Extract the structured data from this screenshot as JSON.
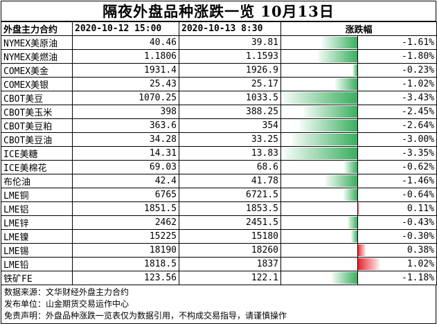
{
  "title": "隔夜外盘品种涨跌一览 10月13日",
  "headers": {
    "name": "外盘主力合约",
    "date1": "2020-10-12 15:00",
    "date2": "2020-10-13 8:30",
    "change": "涨跌幅"
  },
  "rows": [
    {
      "name": "NYMEX美原油",
      "v1": "40.46",
      "v2": "39.81",
      "pct": "-1.61%",
      "chg": -1.61
    },
    {
      "name": "NYMEX美燃油",
      "v1": "1.1806",
      "v2": "1.1593",
      "pct": "-1.80%",
      "chg": -1.8
    },
    {
      "name": "COMEX美金",
      "v1": "1931.4",
      "v2": "1926.9",
      "pct": "-0.23%",
      "chg": -0.23
    },
    {
      "name": "COMEX美银",
      "v1": "25.43",
      "v2": "25.17",
      "pct": "-1.02%",
      "chg": -1.02
    },
    {
      "name": "CBOT美豆",
      "v1": "1070.25",
      "v2": "1033.5",
      "pct": "-3.43%",
      "chg": -3.43
    },
    {
      "name": "CBOT美玉米",
      "v1": "398",
      "v2": "388.25",
      "pct": "-2.45%",
      "chg": -2.45
    },
    {
      "name": "CBOT美豆粕",
      "v1": "363.6",
      "v2": "354",
      "pct": "-2.64%",
      "chg": -2.64
    },
    {
      "name": "CBOT美豆油",
      "v1": "34.28",
      "v2": "33.25",
      "pct": "-3.00%",
      "chg": -3.0
    },
    {
      "name": "ICE美糖",
      "v1": "14.31",
      "v2": "13.83",
      "pct": "-3.35%",
      "chg": -3.35
    },
    {
      "name": "ICE美棉花",
      "v1": "69.03",
      "v2": "68.6",
      "pct": "-0.62%",
      "chg": -0.62
    },
    {
      "name": "布伦油",
      "v1": "42.4",
      "v2": "41.78",
      "pct": "-1.46%",
      "chg": -1.46
    },
    {
      "name": "LME铜",
      "v1": "6765",
      "v2": "6721.5",
      "pct": "-0.64%",
      "chg": -0.64
    },
    {
      "name": "LME铝",
      "v1": "1851.5",
      "v2": "1853.5",
      "pct": "0.11%",
      "chg": 0.11
    },
    {
      "name": "LME锌",
      "v1": "2462",
      "v2": "2451.5",
      "pct": "-0.43%",
      "chg": -0.43
    },
    {
      "name": "LME镍",
      "v1": "15225",
      "v2": "15180",
      "pct": "-0.30%",
      "chg": -0.3
    },
    {
      "name": "LME锡",
      "v1": "18190",
      "v2": "18260",
      "pct": "0.38%",
      "chg": 0.38
    },
    {
      "name": "LME铅",
      "v1": "1818.5",
      "v2": "1837",
      "pct": "1.02%",
      "chg": 1.02
    },
    {
      "name": "铁矿FE",
      "v1": "123.56",
      "v2": "122.1",
      "pct": "-1.18%",
      "chg": -1.18
    }
  ],
  "notes": [
    "数据来源：文华财经外盘主力合约",
    "发布单位：山金期货交易运作中心",
    "免责声明：外盘品种涨跌一览表仅为数据引用，不构成交易指导，请谨慎操作"
  ],
  "colors": {
    "negative": "#2eaa56",
    "positive": "#eb1c24"
  }
}
